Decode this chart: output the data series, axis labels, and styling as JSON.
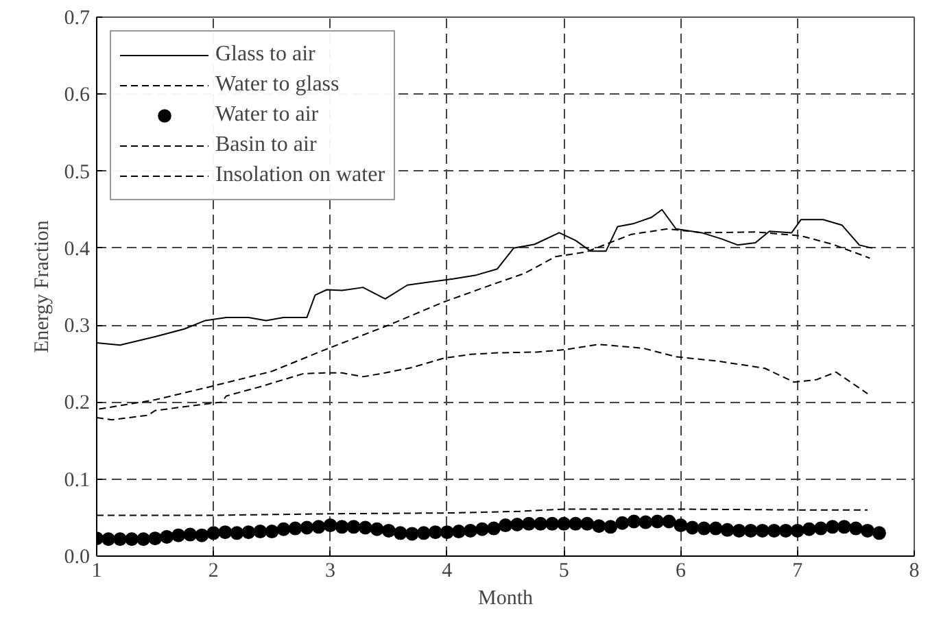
{
  "chart_data": {
    "type": "line",
    "xlabel": "Month",
    "ylabel": "Energy Fraction",
    "xlim": [
      1,
      8
    ],
    "ylim": [
      0,
      0.7
    ],
    "xticks": [
      1,
      2,
      3,
      4,
      5,
      6,
      7,
      8
    ],
    "yticks": [
      {
        "value": 0,
        "label": "0.0"
      },
      0.1,
      0.2,
      0.3,
      0.4,
      0.5,
      0.6,
      0.7
    ],
    "grid": true,
    "legend": "top left",
    "series": [
      {
        "name": "Glass to air",
        "color": "#000000",
        "line_style": "solid",
        "x": [
          1.0,
          1.2,
          1.5,
          1.75,
          1.93,
          2.11,
          2.3,
          2.45,
          2.6,
          2.8,
          2.87,
          2.97,
          3.1,
          3.28,
          3.47,
          3.66,
          3.85,
          4.05,
          4.25,
          4.43,
          4.57,
          4.75,
          4.96,
          5.1,
          5.23,
          5.36,
          5.46,
          5.6,
          5.75,
          5.84,
          5.96,
          6.18,
          6.35,
          6.49,
          6.64,
          6.76,
          6.95,
          7.03,
          7.22,
          7.38,
          7.53,
          7.64
        ],
        "values": [
          0.277,
          0.274,
          0.285,
          0.295,
          0.306,
          0.31,
          0.31,
          0.306,
          0.31,
          0.31,
          0.339,
          0.346,
          0.345,
          0.349,
          0.334,
          0.352,
          0.356,
          0.36,
          0.365,
          0.373,
          0.4,
          0.405,
          0.42,
          0.41,
          0.396,
          0.396,
          0.428,
          0.432,
          0.44,
          0.45,
          0.425,
          0.42,
          0.412,
          0.404,
          0.407,
          0.422,
          0.42,
          0.437,
          0.437,
          0.43,
          0.404,
          0.4
        ]
      },
      {
        "name": "Water to glass",
        "color": "#000000",
        "line_style": "dashed",
        "x": [
          1.0,
          1.13,
          1.44,
          1.5,
          1.8,
          2.07,
          2.11,
          2.4,
          2.77,
          2.97,
          3.1,
          3.28,
          3.47,
          3.7,
          3.97,
          4.2,
          4.43,
          4.77,
          5.0,
          5.3,
          5.68,
          5.96,
          6.33,
          6.72,
          6.97,
          7.16,
          7.33,
          7.6
        ],
        "values": [
          0.18,
          0.177,
          0.183,
          0.189,
          0.195,
          0.2,
          0.208,
          0.22,
          0.237,
          0.238,
          0.238,
          0.233,
          0.238,
          0.245,
          0.257,
          0.262,
          0.264,
          0.265,
          0.268,
          0.275,
          0.27,
          0.259,
          0.253,
          0.244,
          0.226,
          0.229,
          0.239,
          0.211
        ]
      },
      {
        "name": "Water to air",
        "type": "scatter",
        "color": "#000000",
        "marker": "circle",
        "x": [
          1.0,
          1.1,
          1.2,
          1.3,
          1.4,
          1.5,
          1.6,
          1.7,
          1.8,
          1.9,
          2.0,
          2.1,
          2.2,
          2.3,
          2.4,
          2.5,
          2.6,
          2.7,
          2.8,
          2.9,
          3.0,
          3.1,
          3.2,
          3.3,
          3.4,
          3.5,
          3.6,
          3.7,
          3.8,
          3.9,
          4.0,
          4.1,
          4.2,
          4.3,
          4.4,
          4.5,
          4.6,
          4.7,
          4.8,
          4.9,
          5.0,
          5.1,
          5.2,
          5.3,
          5.4,
          5.5,
          5.6,
          5.7,
          5.8,
          5.9,
          6.0,
          6.1,
          6.2,
          6.3,
          6.4,
          6.5,
          6.6,
          6.7,
          6.8,
          6.9,
          7.0,
          7.1,
          7.2,
          7.3,
          7.4,
          7.5,
          7.6,
          7.7
        ],
        "values": [
          0.023,
          0.022,
          0.022,
          0.022,
          0.022,
          0.023,
          0.025,
          0.027,
          0.028,
          0.027,
          0.03,
          0.031,
          0.03,
          0.031,
          0.032,
          0.032,
          0.035,
          0.036,
          0.037,
          0.038,
          0.04,
          0.038,
          0.038,
          0.037,
          0.035,
          0.033,
          0.03,
          0.029,
          0.03,
          0.031,
          0.031,
          0.032,
          0.033,
          0.035,
          0.036,
          0.04,
          0.041,
          0.042,
          0.042,
          0.042,
          0.042,
          0.042,
          0.042,
          0.039,
          0.038,
          0.043,
          0.045,
          0.044,
          0.045,
          0.045,
          0.04,
          0.037,
          0.036,
          0.036,
          0.034,
          0.033,
          0.033,
          0.033,
          0.033,
          0.033,
          0.033,
          0.035,
          0.036,
          0.038,
          0.038,
          0.036,
          0.033,
          0.03
        ]
      },
      {
        "name": "Basin to air",
        "color": "#000000",
        "line_style": "dashed",
        "x": [
          1.0,
          2.0,
          3.0,
          4.0,
          4.6,
          5.0,
          6.0,
          7.0,
          7.6
        ],
        "values": [
          0.053,
          0.053,
          0.055,
          0.056,
          0.058,
          0.061,
          0.061,
          0.06,
          0.06
        ]
      },
      {
        "name": "Insolation on water",
        "color": "#000000",
        "line_style": "dashed",
        "x": [
          1.02,
          1.5,
          1.97,
          2.5,
          2.97,
          3.5,
          3.97,
          4.43,
          4.66,
          4.93,
          5.19,
          5.58,
          5.89,
          6.18,
          6.64,
          7.03,
          7.3,
          7.62
        ],
        "values": [
          0.191,
          0.203,
          0.22,
          0.24,
          0.269,
          0.3,
          0.33,
          0.355,
          0.367,
          0.389,
          0.395,
          0.418,
          0.425,
          0.42,
          0.421,
          0.416,
          0.405,
          0.387
        ]
      }
    ]
  }
}
